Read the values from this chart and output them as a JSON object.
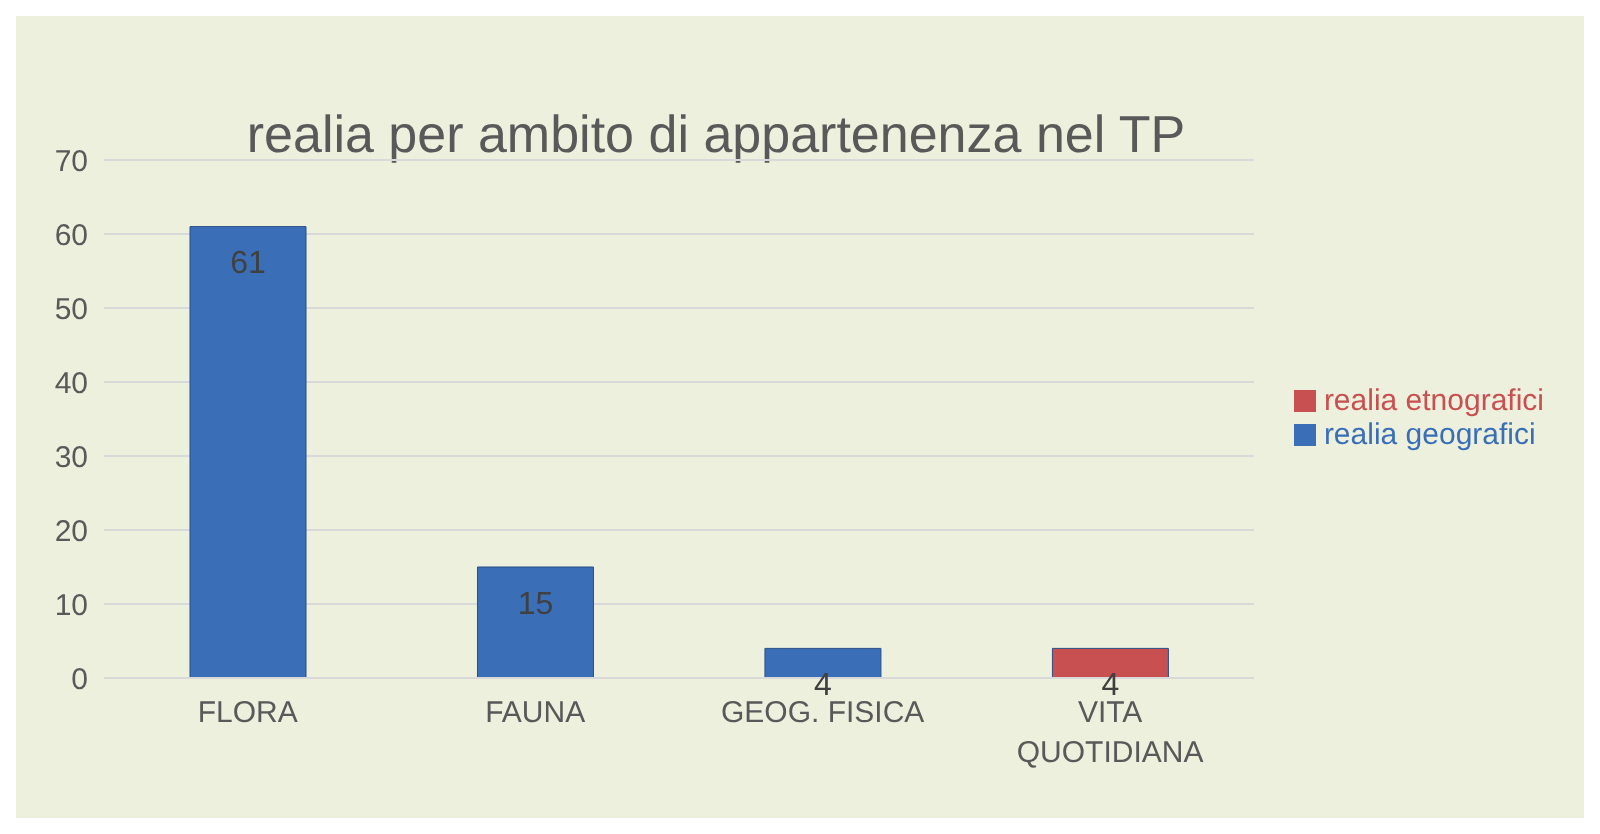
{
  "chart_data": {
    "type": "bar",
    "title": "realia per ambito di appartenenza nel TP",
    "categories": [
      "FLORA",
      "FAUNA",
      "GEOG. FISICA",
      "VITA QUOTIDIANA"
    ],
    "series": [
      {
        "name": "realia geografici",
        "color": "#3a6fb8",
        "values": [
          61,
          15,
          4,
          null
        ]
      },
      {
        "name": "realia etnografici",
        "color": "#c85050",
        "values": [
          null,
          null,
          null,
          4
        ]
      }
    ],
    "stacked": true,
    "ylim": [
      0,
      70
    ],
    "yticks": [
      0,
      10,
      20,
      30,
      40,
      50,
      60,
      70
    ],
    "grid": "y",
    "legend": "right",
    "data_labels": true
  }
}
